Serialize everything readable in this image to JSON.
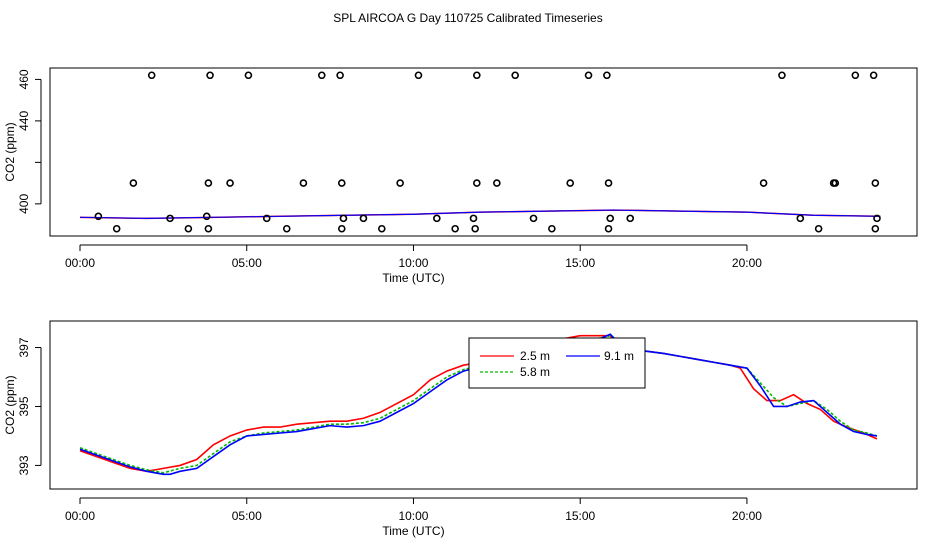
{
  "title": "SPL AIRCOA G  Day 110725  Calibrated Timeseries",
  "colors": {
    "m2_5": "#ff0000",
    "m5_8": "#00bb00",
    "m9_1": "#0000ff",
    "points": "#000000"
  },
  "chart_data": [
    {
      "type": "scatter+line",
      "xlabel": "Time (UTC)",
      "ylabel": "CO2 (ppm)",
      "xlim": [
        -0.9,
        25.1
      ],
      "ylim": [
        384.5,
        465.5
      ],
      "xticks": [
        0,
        5,
        10,
        15,
        20
      ],
      "xticklabels": [
        "00:00",
        "05:00",
        "10:00",
        "15:00",
        "20:00"
      ],
      "yticks": [
        400,
        420,
        440,
        460
      ],
      "yticklabels": [
        "400",
        "",
        "440",
        "460"
      ],
      "line": {
        "x": [
          0,
          2,
          4,
          6,
          8,
          10,
          12,
          14,
          16,
          18,
          20,
          22,
          24
        ],
        "y": [
          393.5,
          393,
          393.5,
          394,
          394.5,
          395,
          396,
          396.5,
          397,
          396.5,
          396,
          394.5,
          394
        ]
      },
      "points": {
        "x": [
          0.55,
          1.1,
          2.15,
          2.7,
          3.25,
          3.8,
          3.85,
          3.9,
          5.05,
          5.6,
          6.2,
          7.25,
          7.8,
          7.85,
          7.9,
          8.5,
          9.05,
          10.15,
          10.7,
          11.25,
          11.8,
          11.85,
          11.9,
          13.05,
          13.6,
          14.15,
          15.25,
          15.8,
          15.85,
          15.9,
          16.5,
          21.05,
          21.6,
          22.15,
          22.6,
          23.25,
          23.8,
          23.85,
          23.9
        ],
        "y": [
          394,
          388,
          462,
          393,
          388,
          394,
          388,
          462,
          462,
          393,
          388,
          462,
          462,
          388,
          393,
          393,
          388,
          462,
          393,
          388,
          393,
          388,
          462,
          462,
          393,
          388,
          462,
          462,
          388,
          393,
          393,
          462,
          393,
          388,
          410,
          462,
          462,
          388,
          393
        ]
      },
      "outline_points": {
        "x": [
          1.6,
          3.85,
          4.5,
          6.7,
          7.85,
          9.6,
          11.9,
          12.5,
          14.7,
          15.85,
          20.5,
          22.65,
          23.85
        ],
        "y": [
          410,
          410,
          410,
          410,
          410,
          410,
          410,
          410,
          410,
          410,
          410,
          410,
          410
        ]
      }
    },
    {
      "type": "line",
      "xlabel": "Time (UTC)",
      "ylabel": "CO2 (ppm)",
      "xlim": [
        -0.9,
        25.1
      ],
      "ylim": [
        392.2,
        397.9
      ],
      "xticks": [
        0,
        5,
        10,
        15,
        20
      ],
      "xticklabels": [
        "00:00",
        "05:00",
        "10:00",
        "15:00",
        "20:00"
      ],
      "yticks": [
        393,
        395,
        397
      ],
      "yticklabels": [
        "393",
        "395",
        "397"
      ],
      "legend": {
        "entries": [
          "2.5 m",
          "9.1 m",
          "5.8 m"
        ],
        "placement": "top-center"
      },
      "series": [
        {
          "name": "2.5 m",
          "x": [
            0,
            0.5,
            1,
            1.5,
            2,
            2.5,
            3,
            3.5,
            4,
            4.5,
            5,
            5.5,
            6,
            6.5,
            7,
            7.5,
            8,
            8.5,
            9,
            9.5,
            10,
            10.5,
            11,
            11.5,
            12,
            12.5,
            13,
            13.5,
            14,
            14.5,
            15,
            15.5,
            15.9,
            16.3,
            16.8,
            17.5,
            18,
            18.5,
            19,
            19.5,
            19.8,
            20.2,
            20.6,
            21,
            21.4,
            21.8,
            22.2,
            22.6,
            23,
            23.5,
            23.9
          ],
          "y": [
            393.5,
            393.3,
            393.1,
            392.9,
            392.8,
            392.9,
            393.0,
            393.2,
            393.7,
            394.0,
            394.2,
            394.3,
            394.3,
            394.4,
            394.45,
            394.5,
            394.5,
            394.6,
            394.8,
            395.1,
            395.4,
            395.9,
            396.2,
            396.4,
            396.5,
            396.6,
            396.9,
            397.1,
            397.2,
            397.3,
            397.4,
            397.4,
            397.4,
            397.0,
            396.9,
            396.8,
            396.7,
            396.6,
            396.5,
            396.4,
            396.3,
            395.6,
            395.2,
            395.2,
            395.4,
            395.1,
            394.9,
            394.5,
            394.3,
            394.1,
            393.9
          ]
        },
        {
          "name": "5.8 m",
          "x": [
            0,
            0.5,
            1,
            1.5,
            2,
            2.5,
            3,
            3.5,
            4,
            4.5,
            5,
            5.5,
            6,
            6.5,
            7,
            7.5,
            8,
            8.5,
            9,
            9.5,
            10,
            10.5,
            11,
            11.5,
            12,
            12.5,
            13,
            13.5,
            14,
            14.5,
            15,
            15.5,
            15.9,
            16.3,
            16.8,
            17.5,
            18,
            18.5,
            19,
            19.5,
            20,
            20.4,
            20.8,
            21.2,
            21.6,
            22,
            22.4,
            22.8,
            23.2,
            23.6,
            23.9
          ],
          "y": [
            393.6,
            393.4,
            393.2,
            393.0,
            392.85,
            392.75,
            392.9,
            393.0,
            393.4,
            393.8,
            394.0,
            394.1,
            394.15,
            394.2,
            394.3,
            394.4,
            394.4,
            394.45,
            394.6,
            394.9,
            395.2,
            395.6,
            396.0,
            396.25,
            396.4,
            396.5,
            396.7,
            396.9,
            397.0,
            397.1,
            397.25,
            397.3,
            397.4,
            397.0,
            396.9,
            396.8,
            396.7,
            396.6,
            396.5,
            396.4,
            396.3,
            395.8,
            395.3,
            395.0,
            395.1,
            395.2,
            394.9,
            394.5,
            394.2,
            394.1,
            394.0
          ]
        },
        {
          "name": "9.1 m",
          "x": [
            0,
            0.5,
            1,
            1.5,
            2,
            2.5,
            2.7,
            3,
            3.5,
            4,
            4.5,
            5,
            5.5,
            6,
            6.5,
            7,
            7.5,
            8,
            8.5,
            9,
            9.5,
            10,
            10.5,
            11,
            11.5,
            12,
            12.5,
            13,
            13.5,
            14,
            14.5,
            15,
            15.5,
            15.9,
            16.3,
            16.8,
            17.5,
            18,
            18.5,
            19,
            19.5,
            20,
            20.4,
            20.8,
            21.2,
            21.6,
            22,
            22.4,
            22.8,
            23.2,
            23.6,
            23.9
          ],
          "y": [
            393.55,
            393.35,
            393.15,
            392.95,
            392.8,
            392.7,
            392.7,
            392.8,
            392.9,
            393.3,
            393.7,
            394.0,
            394.05,
            394.1,
            394.15,
            394.25,
            394.35,
            394.3,
            394.35,
            394.5,
            394.8,
            395.1,
            395.5,
            395.9,
            396.2,
            396.35,
            396.45,
            396.65,
            396.85,
            396.95,
            397.05,
            397.2,
            397.25,
            397.45,
            397.0,
            396.9,
            396.8,
            396.7,
            396.6,
            396.5,
            396.4,
            396.3,
            395.7,
            395.0,
            395.0,
            395.15,
            395.2,
            394.8,
            394.4,
            394.15,
            394.05,
            394.0
          ]
        }
      ]
    }
  ]
}
